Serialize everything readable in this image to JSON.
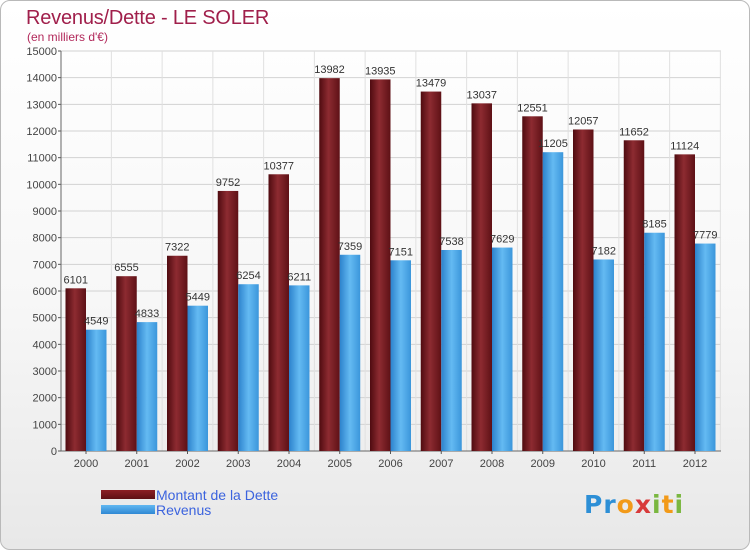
{
  "title": "Revenus/Dette - LE SOLER",
  "subtitle": "(en milliers d'€)",
  "logo": {
    "text": "Proxiti"
  },
  "colors": {
    "debt_top": "#8a2a2f",
    "debt_bottom": "#5d1015",
    "revenue_top": "#5fb7f1",
    "revenue_bottom": "#2e87d2",
    "title": "#a01f4b",
    "legend_text": "#3b63de"
  },
  "chart_data": {
    "type": "bar",
    "categories": [
      "2000",
      "2001",
      "2002",
      "2003",
      "2004",
      "2005",
      "2006",
      "2007",
      "2008",
      "2009",
      "2010",
      "2011",
      "2012"
    ],
    "series": [
      {
        "name": "Montant de la Dette",
        "values": [
          6101,
          6555,
          7322,
          9752,
          10377,
          13982,
          13935,
          13479,
          13037,
          12551,
          12057,
          11652,
          11124
        ]
      },
      {
        "name": "Revenus",
        "values": [
          4549,
          4833,
          5449,
          6254,
          6211,
          7359,
          7151,
          7538,
          7629,
          11205,
          7182,
          8185,
          7779
        ]
      }
    ],
    "yticks": [
      "0",
      "1000",
      "2000",
      "3000",
      "4000",
      "5000",
      "6000",
      "7000",
      "8000",
      "9000",
      "10000",
      "11000",
      "12000",
      "13000",
      "14000",
      "15000"
    ],
    "ylim": [
      0,
      15000
    ],
    "grid": true,
    "legend": "bottom-left"
  }
}
